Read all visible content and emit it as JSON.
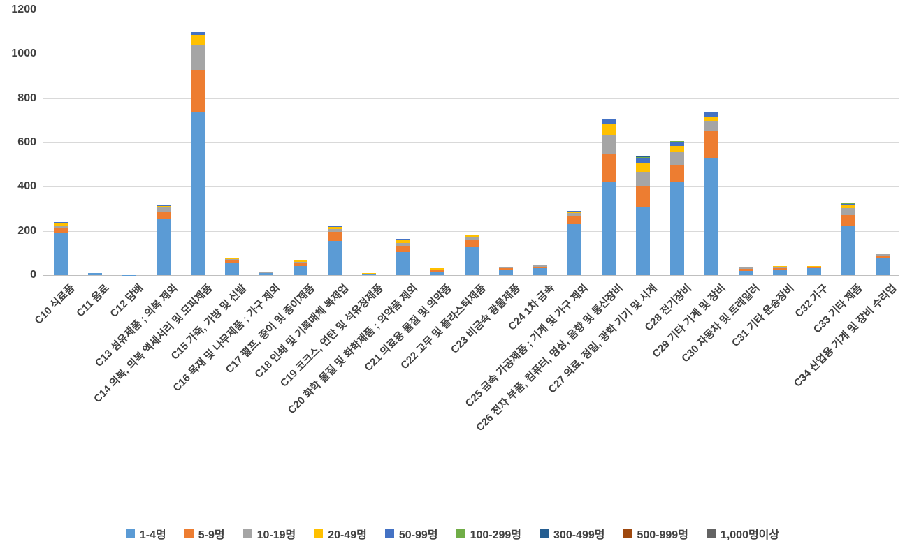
{
  "chart_data": {
    "type": "bar",
    "stacked": true,
    "title": "",
    "xlabel": "",
    "ylabel": "",
    "ylim": [
      0,
      1200
    ],
    "yticks": [
      0,
      200,
      400,
      600,
      800,
      1000,
      1200
    ],
    "grid": true,
    "legend_position": "bottom",
    "categories": [
      "C10 식료품",
      "C11 음료",
      "C12 담배",
      "C13 섬유제품 ; 의복 제외",
      "C14 의복, 의복 액세서리 및 모피제품",
      "C15 가죽, 가방 및 신발",
      "C16 목재 및 나무제품 ; 가구 제외",
      "C17 펄프, 종이 및 종이제품",
      "C18 인쇄 및 기록매체 복제업",
      "C19 코크스, 연탄 및 석유정제품",
      "C20 화학 물질 및 화학제품 ; 의약품 제외",
      "C21 의료용 물질 및 의약품",
      "C22 고무 및 플라스틱제품",
      "C23 비금속 광물제품",
      "C24 1차 금속",
      "C25 금속 가공제품 ; 기계 및 가구 제외",
      "C26 전자 부품, 컴퓨터, 영상, 음향 및 통신장비",
      "C27 의료, 정밀, 광학 기기 및 시계",
      "C28 전기장비",
      "C29 기타 기계 및 장비",
      "C30 자동차 및 트레일러",
      "C31 기타 운송장비",
      "C32 가구",
      "C33 기타 제품",
      "C34 산업용 기계 및 장비 수리업"
    ],
    "series": [
      {
        "name": "1-4명",
        "color": "#5B9BD5",
        "values": [
          190,
          8,
          1,
          255,
          740,
          55,
          8,
          40,
          155,
          3,
          105,
          15,
          125,
          25,
          30,
          230,
          420,
          310,
          420,
          530,
          20,
          25,
          33,
          225,
          80
        ]
      },
      {
        "name": "5-9명",
        "color": "#ED7D31",
        "values": [
          25,
          2,
          0,
          30,
          190,
          12,
          3,
          13,
          40,
          3,
          27,
          6,
          32,
          8,
          9,
          35,
          125,
          95,
          80,
          125,
          10,
          8,
          4,
          48,
          10
        ]
      },
      {
        "name": "10-19명",
        "color": "#A5A5A5",
        "values": [
          10,
          1,
          0,
          20,
          110,
          5,
          1,
          8,
          15,
          1,
          14,
          4,
          14,
          3,
          4,
          15,
          88,
          60,
          58,
          40,
          5,
          4,
          2,
          30,
          4
        ]
      },
      {
        "name": "20-49명",
        "color": "#FFC000",
        "values": [
          13,
          0,
          0,
          8,
          45,
          3,
          0,
          4,
          8,
          1,
          12,
          7,
          8,
          2,
          2,
          7,
          48,
          40,
          25,
          20,
          3,
          3,
          1,
          15,
          1
        ]
      },
      {
        "name": "50-99명",
        "color": "#4472C4",
        "values": [
          2,
          0,
          0,
          2,
          15,
          0,
          0,
          1,
          2,
          0,
          2,
          1,
          2,
          0,
          1,
          3,
          25,
          25,
          20,
          20,
          0,
          1,
          0,
          5,
          0
        ]
      },
      {
        "name": "100-299명",
        "color": "#70AD47",
        "values": [
          0,
          0,
          0,
          0,
          0,
          0,
          0,
          0,
          0,
          0,
          0,
          0,
          0,
          0,
          0,
          0,
          2,
          3,
          2,
          0,
          0,
          0,
          0,
          1,
          0
        ]
      },
      {
        "name": "300-499명",
        "color": "#255E91",
        "values": [
          0,
          0,
          0,
          0,
          0,
          0,
          0,
          0,
          0,
          0,
          0,
          0,
          0,
          0,
          0,
          0,
          0,
          4,
          0,
          0,
          0,
          0,
          0,
          0,
          0
        ]
      },
      {
        "name": "500-999명",
        "color": "#9E480E",
        "values": [
          0,
          0,
          0,
          0,
          0,
          0,
          0,
          0,
          0,
          0,
          0,
          0,
          0,
          0,
          0,
          0,
          0,
          0,
          0,
          0,
          0,
          0,
          0,
          0,
          0
        ]
      },
      {
        "name": "1,000명이상",
        "color": "#636363",
        "values": [
          0,
          0,
          0,
          0,
          0,
          0,
          0,
          0,
          0,
          0,
          0,
          0,
          0,
          0,
          0,
          0,
          0,
          3,
          0,
          0,
          0,
          0,
          0,
          0,
          0
        ]
      }
    ]
  }
}
